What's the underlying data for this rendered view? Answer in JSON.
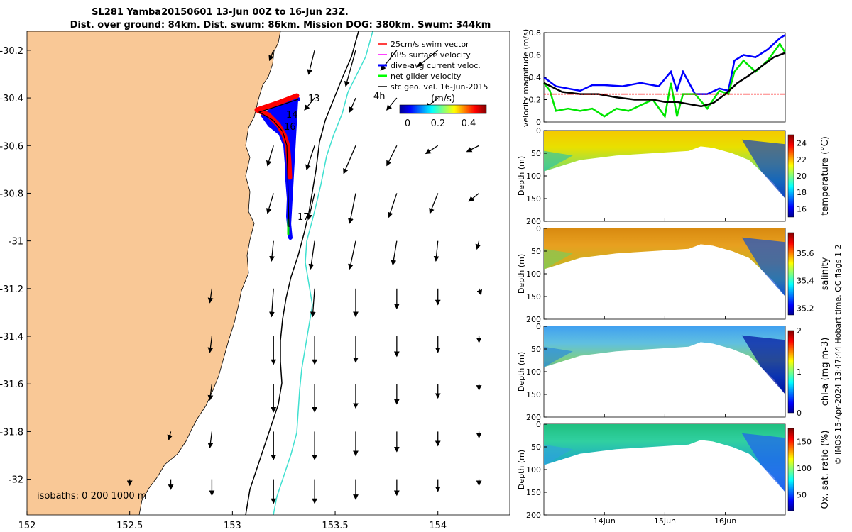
{
  "header": {
    "title_line1": "SL281 Yamba20150601 13-Jun 00Z to 16-Jun 23Z.",
    "title_line2": "Dist. over ground: 84km. Dist. swum: 86km. Mission DOG: 380km. Swum: 344km"
  },
  "credit": "© IMOS 15-Apr-2024 13:47:44 Hobart time. QC flags 1  2",
  "map": {
    "legend": [
      {
        "label": "25cm/s swim vector",
        "color": "#ff0000"
      },
      {
        "label": "GPS surface velocity",
        "color": "#ff00ff"
      },
      {
        "label": "dive-avg current veloc.",
        "color": "#0000ff"
      },
      {
        "label": "net glider velocity",
        "color": "#00ff00"
      },
      {
        "label": "sfc geo. vel. 16-Jun-2015",
        "color": "#000000"
      }
    ],
    "speed_unit": "(m/s)",
    "speed_ticks": [
      "0",
      "0.2",
      "0.4"
    ],
    "isobaths": "isobaths: 0   200  1000 m",
    "day_labels": [
      "13",
      "14",
      "16",
      "17"
    ],
    "hour_label": "4h",
    "land_color": "#f9c896",
    "isobath_200_color": "#000000",
    "isobath_1000_color": "#40e0d0"
  },
  "chart_data": [
    {
      "type": "vector-map",
      "xlim": [
        152,
        154.35
      ],
      "ylim": [
        -32.15,
        -30.12
      ],
      "xticks": [
        "152",
        "152.5",
        "153",
        "153.5",
        "154"
      ],
      "yticks": [
        "-30.2",
        "-30.4",
        "-30.6",
        "-30.8",
        "-31",
        "-31.2",
        "-31.4",
        "-31.6",
        "-31.8",
        "-32"
      ],
      "glider_track": [
        [
          153.3,
          -30.42
        ],
        [
          153.2,
          -30.44
        ],
        [
          153.12,
          -30.46
        ],
        [
          153.18,
          -30.48
        ],
        [
          153.22,
          -30.53
        ],
        [
          153.24,
          -30.6
        ],
        [
          153.24,
          -30.68
        ],
        [
          153.24,
          -30.76
        ],
        [
          153.25,
          -30.85
        ],
        [
          153.24,
          -30.92
        ],
        [
          153.25,
          -31.0
        ]
      ],
      "vectors": [
        {
          "lon": 153.2,
          "lat": -30.2,
          "u": -0.02,
          "v": -0.05
        },
        {
          "lon": 153.4,
          "lat": -30.2,
          "u": -0.03,
          "v": -0.12
        },
        {
          "lon": 153.6,
          "lat": -30.2,
          "u": -0.05,
          "v": -0.18
        },
        {
          "lon": 153.8,
          "lat": -30.2,
          "u": -0.08,
          "v": -0.1
        },
        {
          "lon": 154.0,
          "lat": -30.2,
          "u": -0.1,
          "v": -0.08
        },
        {
          "lon": 153.4,
          "lat": -30.4,
          "u": -0.05,
          "v": -0.06
        },
        {
          "lon": 153.6,
          "lat": -30.4,
          "u": -0.03,
          "v": -0.07
        },
        {
          "lon": 153.8,
          "lat": -30.4,
          "u": -0.05,
          "v": -0.06
        },
        {
          "lon": 154.0,
          "lat": -30.4,
          "u": -0.06,
          "v": -0.05
        },
        {
          "lon": 153.2,
          "lat": -30.6,
          "u": -0.03,
          "v": -0.1
        },
        {
          "lon": 153.4,
          "lat": -30.6,
          "u": -0.04,
          "v": -0.12
        },
        {
          "lon": 153.6,
          "lat": -30.6,
          "u": -0.06,
          "v": -0.14
        },
        {
          "lon": 153.8,
          "lat": -30.6,
          "u": -0.05,
          "v": -0.1
        },
        {
          "lon": 154.0,
          "lat": -30.6,
          "u": -0.06,
          "v": -0.04
        },
        {
          "lon": 154.2,
          "lat": -30.6,
          "u": -0.06,
          "v": -0.03
        },
        {
          "lon": 153.2,
          "lat": -30.8,
          "u": -0.03,
          "v": -0.1
        },
        {
          "lon": 153.4,
          "lat": -30.8,
          "u": -0.03,
          "v": -0.13
        },
        {
          "lon": 153.6,
          "lat": -30.8,
          "u": -0.03,
          "v": -0.15
        },
        {
          "lon": 153.8,
          "lat": -30.8,
          "u": -0.04,
          "v": -0.12
        },
        {
          "lon": 154.0,
          "lat": -30.8,
          "u": -0.04,
          "v": -0.1
        },
        {
          "lon": 154.2,
          "lat": -30.8,
          "u": -0.05,
          "v": -0.04
        },
        {
          "lon": 153.2,
          "lat": -31.0,
          "u": -0.01,
          "v": -0.1
        },
        {
          "lon": 153.4,
          "lat": -31.0,
          "u": -0.02,
          "v": -0.14
        },
        {
          "lon": 153.6,
          "lat": -31.0,
          "u": -0.03,
          "v": -0.14
        },
        {
          "lon": 153.8,
          "lat": -31.0,
          "u": -0.02,
          "v": -0.12
        },
        {
          "lon": 154.0,
          "lat": -31.0,
          "u": -0.01,
          "v": -0.1
        },
        {
          "lon": 154.2,
          "lat": -31.0,
          "u": -0.01,
          "v": -0.04
        },
        {
          "lon": 152.9,
          "lat": -31.2,
          "u": -0.01,
          "v": -0.07
        },
        {
          "lon": 153.2,
          "lat": -31.2,
          "u": -0.01,
          "v": -0.14
        },
        {
          "lon": 153.4,
          "lat": -31.2,
          "u": -0.01,
          "v": -0.14
        },
        {
          "lon": 153.6,
          "lat": -31.2,
          "u": 0.0,
          "v": -0.14
        },
        {
          "lon": 153.8,
          "lat": -31.2,
          "u": 0.0,
          "v": -0.1
        },
        {
          "lon": 154.0,
          "lat": -31.2,
          "u": 0.0,
          "v": -0.08
        },
        {
          "lon": 154.2,
          "lat": -31.2,
          "u": 0.01,
          "v": -0.03
        },
        {
          "lon": 152.9,
          "lat": -31.4,
          "u": -0.01,
          "v": -0.08
        },
        {
          "lon": 153.2,
          "lat": -31.4,
          "u": 0.0,
          "v": -0.14
        },
        {
          "lon": 153.4,
          "lat": -31.4,
          "u": 0.0,
          "v": -0.14
        },
        {
          "lon": 153.6,
          "lat": -31.4,
          "u": 0.0,
          "v": -0.13
        },
        {
          "lon": 153.8,
          "lat": -31.4,
          "u": 0.0,
          "v": -0.1
        },
        {
          "lon": 154.0,
          "lat": -31.4,
          "u": 0.0,
          "v": -0.08
        },
        {
          "lon": 154.2,
          "lat": -31.4,
          "u": 0.0,
          "v": -0.03
        },
        {
          "lon": 152.9,
          "lat": -31.6,
          "u": -0.01,
          "v": -0.08
        },
        {
          "lon": 153.2,
          "lat": -31.6,
          "u": 0.0,
          "v": -0.14
        },
        {
          "lon": 153.4,
          "lat": -31.6,
          "u": 0.0,
          "v": -0.14
        },
        {
          "lon": 153.6,
          "lat": -31.6,
          "u": 0.0,
          "v": -0.12
        },
        {
          "lon": 153.8,
          "lat": -31.6,
          "u": 0.0,
          "v": -0.1
        },
        {
          "lon": 154.0,
          "lat": -31.6,
          "u": 0.0,
          "v": -0.07
        },
        {
          "lon": 154.2,
          "lat": -31.6,
          "u": 0.0,
          "v": -0.03
        },
        {
          "lon": 152.7,
          "lat": -31.8,
          "u": -0.01,
          "v": -0.04
        },
        {
          "lon": 152.9,
          "lat": -31.8,
          "u": -0.01,
          "v": -0.08
        },
        {
          "lon": 153.2,
          "lat": -31.8,
          "u": 0.0,
          "v": -0.14
        },
        {
          "lon": 153.4,
          "lat": -31.8,
          "u": 0.0,
          "v": -0.14
        },
        {
          "lon": 153.6,
          "lat": -31.8,
          "u": 0.0,
          "v": -0.12
        },
        {
          "lon": 153.8,
          "lat": -31.8,
          "u": 0.0,
          "v": -0.1
        },
        {
          "lon": 154.0,
          "lat": -31.8,
          "u": 0.0,
          "v": -0.07
        },
        {
          "lon": 154.2,
          "lat": -31.8,
          "u": 0.0,
          "v": -0.03
        },
        {
          "lon": 152.5,
          "lat": -32.0,
          "u": 0.0,
          "v": -0.03
        },
        {
          "lon": 152.7,
          "lat": -32.0,
          "u": 0.0,
          "v": -0.05
        },
        {
          "lon": 152.9,
          "lat": -32.0,
          "u": 0.0,
          "v": -0.08
        },
        {
          "lon": 153.2,
          "lat": -32.0,
          "u": 0.0,
          "v": -0.12
        },
        {
          "lon": 153.4,
          "lat": -32.0,
          "u": 0.0,
          "v": -0.12
        },
        {
          "lon": 153.6,
          "lat": -32.0,
          "u": 0.0,
          "v": -0.1
        },
        {
          "lon": 153.8,
          "lat": -32.0,
          "u": 0.0,
          "v": -0.08
        },
        {
          "lon": 154.0,
          "lat": -32.0,
          "u": 0.0,
          "v": -0.06
        },
        {
          "lon": 154.2,
          "lat": -32.0,
          "u": 0.0,
          "v": -0.03
        }
      ]
    },
    {
      "type": "line",
      "ylabel": "velocity magnitude (m/s)",
      "ylim": [
        0,
        0.8
      ],
      "yticks": [
        "0",
        "0.2",
        "0.4",
        "0.6",
        "0.8"
      ],
      "xlim": [
        13.0,
        16.99
      ],
      "series": [
        {
          "color": "#0000ff",
          "x": [
            13.0,
            13.2,
            13.4,
            13.6,
            13.8,
            14.0,
            14.3,
            14.6,
            14.9,
            15.1,
            15.2,
            15.3,
            15.5,
            15.7,
            15.9,
            16.05,
            16.15,
            16.3,
            16.5,
            16.7,
            16.9,
            16.99
          ],
          "y": [
            0.4,
            0.32,
            0.3,
            0.28,
            0.33,
            0.33,
            0.32,
            0.35,
            0.32,
            0.45,
            0.28,
            0.45,
            0.25,
            0.25,
            0.3,
            0.28,
            0.55,
            0.6,
            0.58,
            0.65,
            0.75,
            0.78
          ]
        },
        {
          "color": "#00e600",
          "x": [
            13.0,
            13.1,
            13.2,
            13.4,
            13.6,
            13.8,
            14.0,
            14.2,
            14.4,
            14.6,
            14.8,
            15.0,
            15.1,
            15.2,
            15.3,
            15.5,
            15.7,
            15.9,
            16.05,
            16.15,
            16.3,
            16.5,
            16.7,
            16.9,
            16.99
          ],
          "y": [
            0.35,
            0.28,
            0.1,
            0.12,
            0.1,
            0.12,
            0.05,
            0.12,
            0.1,
            0.15,
            0.2,
            0.05,
            0.35,
            0.05,
            0.25,
            0.25,
            0.12,
            0.28,
            0.25,
            0.45,
            0.55,
            0.45,
            0.55,
            0.7,
            0.62
          ]
        },
        {
          "color": "#000000",
          "x": [
            13.0,
            13.3,
            13.6,
            13.9,
            14.2,
            14.5,
            14.8,
            15.0,
            15.2,
            15.4,
            15.6,
            15.8,
            16.0,
            16.2,
            16.4,
            16.6,
            16.8,
            16.99
          ],
          "y": [
            0.35,
            0.27,
            0.25,
            0.25,
            0.22,
            0.2,
            0.2,
            0.18,
            0.18,
            0.16,
            0.14,
            0.17,
            0.25,
            0.35,
            0.42,
            0.5,
            0.58,
            0.62
          ]
        },
        {
          "color": "#ff0000",
          "x": [
            13.0,
            16.99
          ],
          "y": [
            0.25,
            0.25
          ]
        }
      ]
    },
    {
      "type": "heatmap",
      "variable": "temperature",
      "cbar_label": "temperature (°C)",
      "cbar_ticks": [
        "24",
        "22",
        "20",
        "18",
        "16"
      ],
      "clim": [
        15,
        25
      ],
      "ylabel": "Depth (m)",
      "ylim": [
        0,
        200
      ],
      "yticks": [
        "0",
        "50",
        "100",
        "150",
        "200"
      ]
    },
    {
      "type": "heatmap",
      "variable": "salinity",
      "cbar_label": "salinity",
      "cbar_ticks": [
        "35.6",
        "35.4",
        "35.2"
      ],
      "clim": [
        35.15,
        35.75
      ],
      "ylabel": "Depth (m)",
      "ylim": [
        0,
        200
      ],
      "yticks": [
        "0",
        "50",
        "100",
        "150",
        "200"
      ]
    },
    {
      "type": "heatmap",
      "variable": "chl-a",
      "cbar_label": "chl-a (mg m-3)",
      "cbar_ticks": [
        "2",
        "1",
        "0"
      ],
      "clim": [
        0,
        2
      ],
      "ylabel": "Depth (m)",
      "ylim": [
        0,
        200
      ],
      "yticks": [
        "0",
        "50",
        "100",
        "150",
        "200"
      ]
    },
    {
      "type": "heatmap",
      "variable": "oxygen",
      "cbar_label": "Ox. sat. ratio (%)",
      "cbar_ticks": [
        "150",
        "100",
        "50"
      ],
      "clim": [
        20,
        175
      ],
      "ylabel": "Depth (m)",
      "ylim": [
        0,
        200
      ],
      "yticks": [
        "0",
        "50",
        "100",
        "150",
        "200"
      ],
      "xticks": [
        "14Jun",
        "15Jun",
        "16Jun"
      ]
    }
  ]
}
